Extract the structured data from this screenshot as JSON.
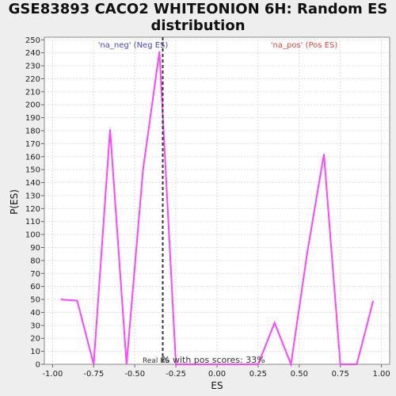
{
  "chart_data": {
    "type": "line",
    "title_line1": "GSE83893 CACO2 WHITEONION 6H: Random ES",
    "title_line2": "distribution",
    "xlabel": "ES",
    "ylabel": "P(ES)",
    "xlim": [
      -1.05,
      1.05
    ],
    "ylim": [
      0,
      252
    ],
    "x_ticks": [
      -1.0,
      -0.75,
      -0.5,
      -0.25,
      0.0,
      0.25,
      0.5,
      0.75,
      1.0
    ],
    "x_tick_labels": [
      "-1.00",
      "-0.75",
      "-0.50",
      "-0.25",
      "0.00",
      "0.25",
      "0.50",
      "0.75",
      "1.00"
    ],
    "y_ticks": [
      0,
      10,
      20,
      30,
      40,
      50,
      60,
      70,
      80,
      90,
      100,
      110,
      120,
      130,
      140,
      150,
      160,
      170,
      180,
      190,
      200,
      210,
      220,
      230,
      240,
      250
    ],
    "grid": true,
    "series": [
      {
        "color": "#ff44ff",
        "x": [
          -0.95,
          -0.85,
          -0.75,
          -0.65,
          -0.55,
          -0.45,
          -0.35,
          -0.25,
          -0.15,
          -0.05,
          0.05,
          0.15,
          0.25,
          0.35,
          0.45,
          0.55,
          0.65,
          0.75,
          0.85,
          0.95
        ],
        "y": [
          50,
          49,
          0,
          181,
          0,
          150,
          241,
          0,
          0,
          0,
          0,
          0,
          0,
          32,
          0,
          87,
          162,
          0,
          0,
          49
        ]
      }
    ],
    "real_es": -0.33,
    "neg_label": "'na_neg' (Neg ES)",
    "pos_label": "'na_pos' (Pos ES)",
    "neg_label_color": "#4444cc",
    "pos_label_color": "#dd4444",
    "real_es_label": "Real ES",
    "pos_scores_label": "% with pos scores: 33%"
  }
}
